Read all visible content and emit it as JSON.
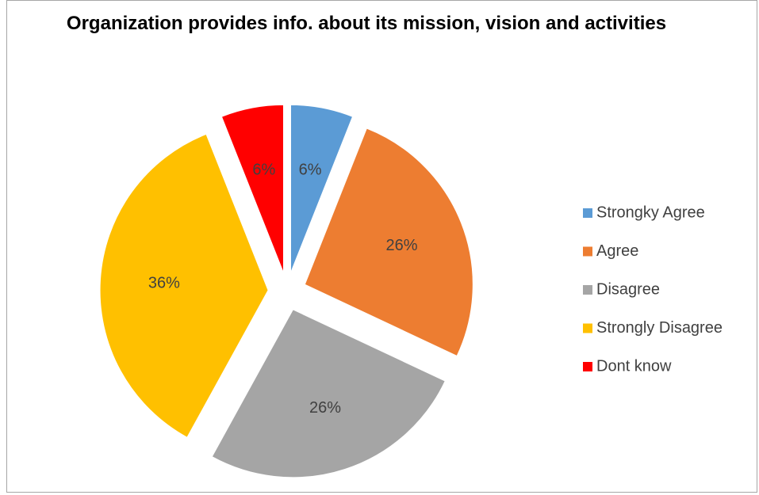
{
  "chart_data": {
    "type": "pie",
    "title": "Organization provides info. about its mission, vision and activities",
    "categories": [
      "Strongky Agree",
      "Agree",
      "Disagree",
      "Strongly Disagree",
      "Dont know"
    ],
    "values": [
      6,
      26,
      26,
      36,
      6
    ],
    "value_labels": [
      "6%",
      "26%",
      "26%",
      "36%",
      "6%"
    ],
    "colors": [
      "#5b9bd5",
      "#ed7d31",
      "#a5a5a5",
      "#ffc000",
      "#ff0000"
    ],
    "exploded": true,
    "legend": "right"
  }
}
